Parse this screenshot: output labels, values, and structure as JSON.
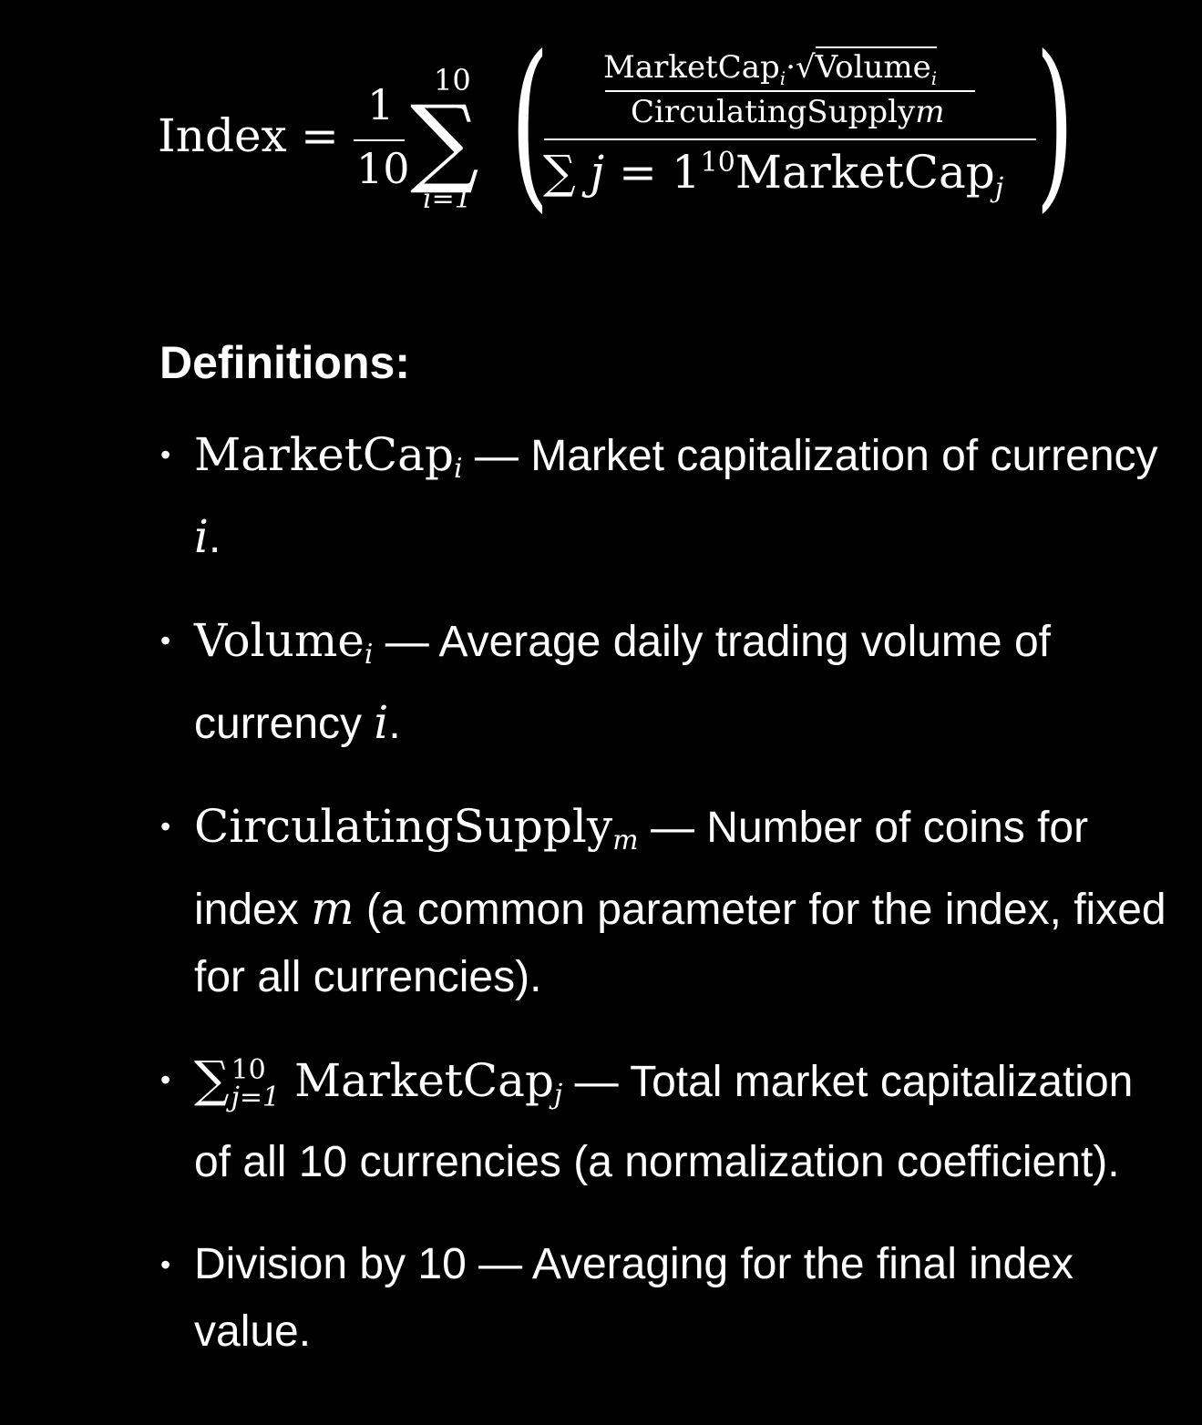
{
  "formula": {
    "lhs": "Index",
    "equals": "=",
    "frac_num": "1",
    "frac_den": "10",
    "sum_symbol": "∑",
    "sum_upper": "10",
    "sum_lower": "i=1",
    "inner_num_marketcap": "MarketCap",
    "inner_num_sub_i": "i",
    "inner_num_dot": "·",
    "inner_num_radical": "√",
    "inner_num_volume": "Volume",
    "inner_num_volume_sub": "i",
    "inner_den_supply": "CirculatingSupply",
    "inner_den_m": "m",
    "outer_den_sum": "∑",
    "outer_den_j": "j",
    "outer_den_eq": "=",
    "outer_den_one": "1",
    "outer_den_sup": "10",
    "outer_den_marketcap": "MarketCap",
    "outer_den_sub": "j",
    "paren_left": "(",
    "paren_right": ")"
  },
  "definitions": {
    "heading": "Definitions:",
    "bullet": "•",
    "items": [
      {
        "symbol": "MarketCap",
        "sub": "i",
        "text": " — Market capitalization of currency ",
        "var": "i",
        "end": "."
      },
      {
        "symbol": "Volume",
        "sub": "i",
        "text": " — Average daily trading volume of currency ",
        "var": "i",
        "end": "."
      },
      {
        "symbol": "CirculatingSupply",
        "sub": "m",
        "text": " — Number of coins for index ",
        "var": "m",
        "end": " (a common parameter for the index, fixed for all currencies)."
      },
      {
        "sum": "∑",
        "sum_sup": "10",
        "sum_sub": "j=1",
        "symbol": " MarketCap",
        "sub": "j",
        "text": " — Total market capitalization of all 10 currencies (a normalization coefficient)."
      },
      {
        "text": "Division by 10 — Averaging for the final index value."
      }
    ]
  }
}
